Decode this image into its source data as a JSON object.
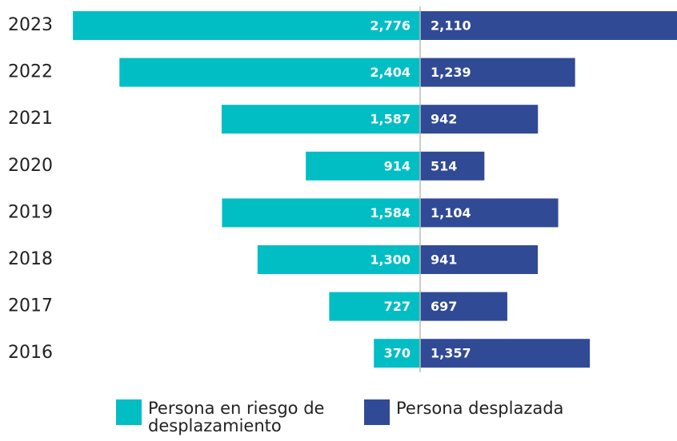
{
  "chart_data": {
    "type": "bar",
    "layout": "diverging",
    "categories": [
      "2023",
      "2022",
      "2021",
      "2020",
      "2019",
      "2018",
      "2017",
      "2016"
    ],
    "series": [
      {
        "name": "Persona en riesgo de desplazamiento",
        "color": "#00bec4",
        "side": "left",
        "values": [
          2776,
          2404,
          1587,
          914,
          1584,
          1300,
          727,
          370
        ],
        "value_labels": [
          "2,776",
          "2,404",
          "1,587",
          "914",
          "1,584",
          "1,300",
          "727",
          "370"
        ]
      },
      {
        "name": "Persona desplazada",
        "color": "#304a96",
        "side": "right",
        "values": [
          2110,
          1239,
          942,
          514,
          1104,
          941,
          697,
          1357
        ],
        "value_labels": [
          "2,110",
          "1,239",
          "942",
          "514",
          "1,104",
          "941",
          "697",
          "1,357"
        ]
      }
    ]
  }
}
